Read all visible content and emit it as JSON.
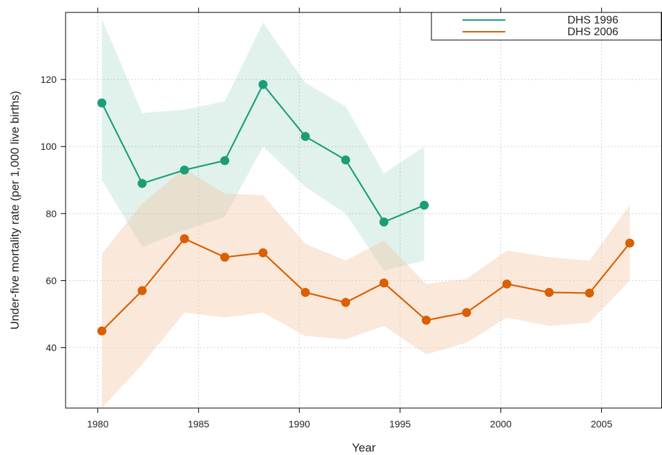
{
  "chart_data": {
    "type": "line",
    "title": "",
    "xlabel": "Year",
    "ylabel": "Under-five mortality rate (per 1,000 live births)",
    "xlim": [
      1978.4,
      2008
    ],
    "ylim": [
      22,
      140
    ],
    "x_ticks": [
      1980,
      1985,
      1990,
      1995,
      2000,
      2005
    ],
    "y_ticks": [
      40,
      60,
      80,
      100,
      120
    ],
    "x_tick_labels": [
      "1980",
      "1985",
      "1990",
      "1995",
      "2000",
      "2005"
    ],
    "y_tick_labels": [
      "40",
      "60",
      "80",
      "100",
      "120"
    ],
    "grid": true,
    "legend_position": "top-right",
    "series": [
      {
        "name": "DHS 1996",
        "color": "#1b9e77",
        "band_color": "#1b9e77",
        "x": [
          1980.2,
          1982.2,
          1984.3,
          1986.3,
          1988.2,
          1990.3,
          1992.3,
          1994.2,
          1996.2
        ],
        "y": [
          113,
          89,
          93,
          95.8,
          118.5,
          103,
          96,
          77.5,
          82.5
        ],
        "lower": [
          90,
          70,
          75,
          79,
          100,
          88,
          80,
          63,
          66
        ],
        "upper": [
          138,
          110,
          111,
          113.5,
          137,
          119,
          112,
          92,
          100
        ]
      },
      {
        "name": "DHS 2006",
        "color": "#d95f02",
        "band_color": "#f4c7a8",
        "x": [
          1980.2,
          1982.2,
          1984.3,
          1986.3,
          1988.2,
          1990.3,
          1992.3,
          1994.2,
          1996.3,
          1998.3,
          2000.3,
          2002.4,
          2004.4,
          2006.4
        ],
        "y": [
          45,
          57,
          72.5,
          67,
          68.3,
          56.5,
          53.5,
          59.3,
          48.2,
          50.5,
          59,
          56.5,
          56.3,
          71.2
        ],
        "lower": [
          22,
          35,
          50.5,
          49,
          50.5,
          43.5,
          42.5,
          46.5,
          38,
          41.5,
          49,
          46.5,
          47.5,
          60
        ],
        "upper": [
          68,
          83,
          93.5,
          86,
          85.5,
          71,
          66,
          72,
          59,
          60.5,
          69,
          67,
          66,
          82.5
        ]
      }
    ]
  }
}
